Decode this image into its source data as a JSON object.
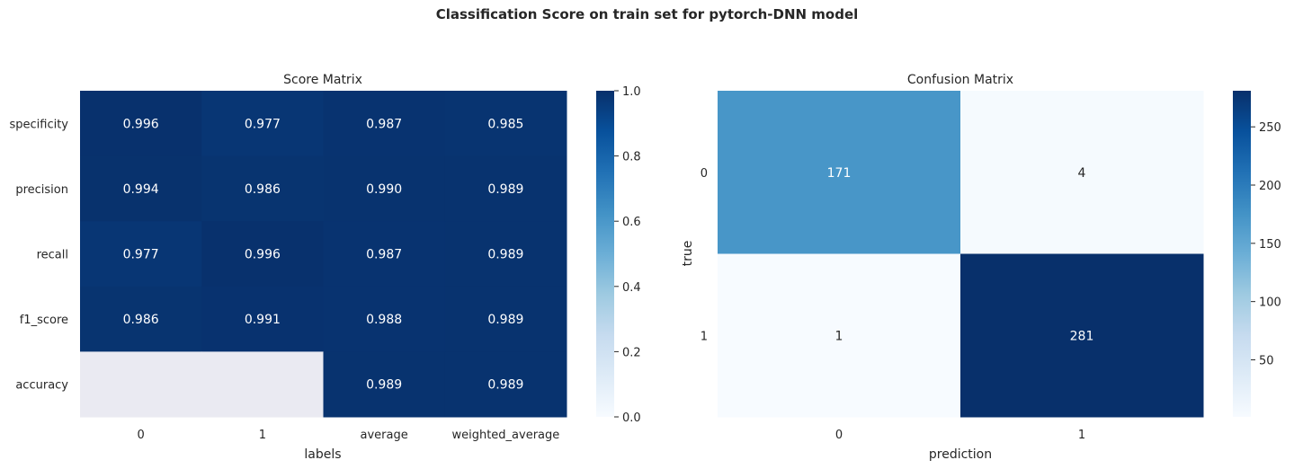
{
  "figure": {
    "title": "Classification Score on train set for pytorch-DNN model"
  },
  "chart_data": [
    {
      "type": "heatmap",
      "title": "Score Matrix",
      "xlabel": "labels",
      "ylabel": "",
      "columns": [
        "0",
        "1",
        "average",
        "weighted_average"
      ],
      "rows": [
        "specificity",
        "precision",
        "recall",
        "f1_score",
        "accuracy"
      ],
      "values": [
        [
          0.996,
          0.977,
          0.987,
          0.985
        ],
        [
          0.994,
          0.986,
          0.99,
          0.989
        ],
        [
          0.977,
          0.996,
          0.987,
          0.989
        ],
        [
          0.986,
          0.991,
          0.988,
          0.989
        ],
        [
          null,
          null,
          0.989,
          0.989
        ]
      ],
      "value_labels": [
        [
          "0.996",
          "0.977",
          "0.987",
          "0.985"
        ],
        [
          "0.994",
          "0.986",
          "0.990",
          "0.989"
        ],
        [
          "0.977",
          "0.996",
          "0.987",
          "0.989"
        ],
        [
          "0.986",
          "0.991",
          "0.988",
          "0.989"
        ],
        [
          "",
          "",
          "0.989",
          "0.989"
        ]
      ],
      "colorbar": {
        "range": [
          0,
          1
        ],
        "ticks": [
          "0.0",
          "0.2",
          "0.4",
          "0.6",
          "0.8",
          "1.0"
        ],
        "tick_values": [
          0,
          0.2,
          0.4,
          0.6,
          0.8,
          1.0
        ]
      },
      "colormap": "Blues",
      "missing_color": "#eaeaf2"
    },
    {
      "type": "heatmap",
      "title": "Confusion Matrix",
      "xlabel": "prediction",
      "ylabel": "true",
      "columns": [
        "0",
        "1"
      ],
      "rows": [
        "0",
        "1"
      ],
      "values": [
        [
          171,
          4
        ],
        [
          1,
          281
        ]
      ],
      "value_labels": [
        [
          "171",
          "4"
        ],
        [
          "1",
          "281"
        ]
      ],
      "colorbar": {
        "range": [
          1,
          281
        ],
        "ticks": [
          "50",
          "100",
          "150",
          "200",
          "250"
        ],
        "tick_values": [
          50,
          100,
          150,
          200,
          250
        ]
      },
      "colormap": "Blues"
    }
  ]
}
